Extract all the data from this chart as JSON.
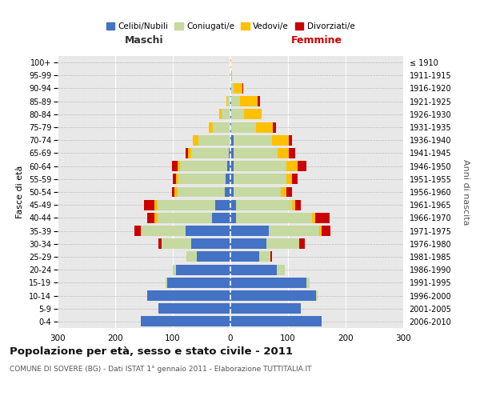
{
  "age_groups": [
    "0-4",
    "5-9",
    "10-14",
    "15-19",
    "20-24",
    "25-29",
    "30-34",
    "35-39",
    "40-44",
    "45-49",
    "50-54",
    "55-59",
    "60-64",
    "65-69",
    "70-74",
    "75-79",
    "80-84",
    "85-89",
    "90-94",
    "95-99",
    "100+"
  ],
  "birth_years": [
    "2006-2010",
    "2001-2005",
    "1996-2000",
    "1991-1995",
    "1986-1990",
    "1981-1985",
    "1976-1980",
    "1971-1975",
    "1966-1970",
    "1961-1965",
    "1956-1960",
    "1951-1955",
    "1946-1950",
    "1941-1945",
    "1936-1940",
    "1931-1935",
    "1926-1930",
    "1921-1925",
    "1916-1920",
    "1911-1915",
    "≤ 1910"
  ],
  "males": {
    "celibi": [
      155,
      125,
      145,
      110,
      95,
      58,
      68,
      78,
      32,
      27,
      10,
      8,
      5,
      3,
      0,
      0,
      0,
      0,
      0,
      0,
      0
    ],
    "coniugati": [
      0,
      0,
      0,
      3,
      5,
      18,
      52,
      78,
      95,
      100,
      82,
      82,
      82,
      65,
      55,
      30,
      15,
      5,
      2,
      1,
      0
    ],
    "vedovi": [
      0,
      0,
      0,
      0,
      0,
      0,
      0,
      0,
      5,
      5,
      5,
      5,
      5,
      5,
      10,
      8,
      5,
      2,
      0,
      0,
      0
    ],
    "divorziati": [
      0,
      0,
      0,
      0,
      0,
      0,
      5,
      10,
      12,
      18,
      5,
      5,
      10,
      5,
      0,
      0,
      0,
      0,
      0,
      0,
      0
    ]
  },
  "females": {
    "nubili": [
      158,
      122,
      148,
      132,
      80,
      50,
      62,
      67,
      10,
      10,
      5,
      5,
      5,
      5,
      5,
      2,
      2,
      2,
      1,
      0,
      0
    ],
    "coniugate": [
      0,
      0,
      3,
      5,
      15,
      20,
      57,
      87,
      132,
      97,
      82,
      92,
      92,
      77,
      67,
      42,
      22,
      15,
      5,
      1,
      0
    ],
    "vedove": [
      0,
      0,
      0,
      0,
      0,
      0,
      0,
      5,
      5,
      5,
      10,
      10,
      20,
      20,
      30,
      30,
      30,
      30,
      15,
      2,
      1
    ],
    "divorziate": [
      0,
      0,
      0,
      0,
      0,
      2,
      10,
      15,
      25,
      10,
      10,
      10,
      15,
      10,
      5,
      5,
      0,
      5,
      1,
      0,
      0
    ]
  },
  "colors": {
    "celibi": "#4472c4",
    "coniugati": "#c5d9a0",
    "vedovi": "#ffc000",
    "divorziati": "#cc0000"
  },
  "xlim": 300,
  "title": "Popolazione per età, sesso e stato civile - 2011",
  "subtitle": "COMUNE DI SOVERE (BG) - Dati ISTAT 1° gennaio 2011 - Elaborazione TUTTITALIA.IT",
  "ylabel_left": "Fasce di età",
  "ylabel_right": "Anni di nascita",
  "xlabel_left": "Maschi",
  "xlabel_right": "Femmine",
  "legend_labels": [
    "Celibi/Nubili",
    "Coniugati/e",
    "Vedovi/e",
    "Divorziati/e"
  ],
  "background_color": "#ffffff",
  "plot_bg": "#e8e8e8",
  "bar_height": 0.8
}
